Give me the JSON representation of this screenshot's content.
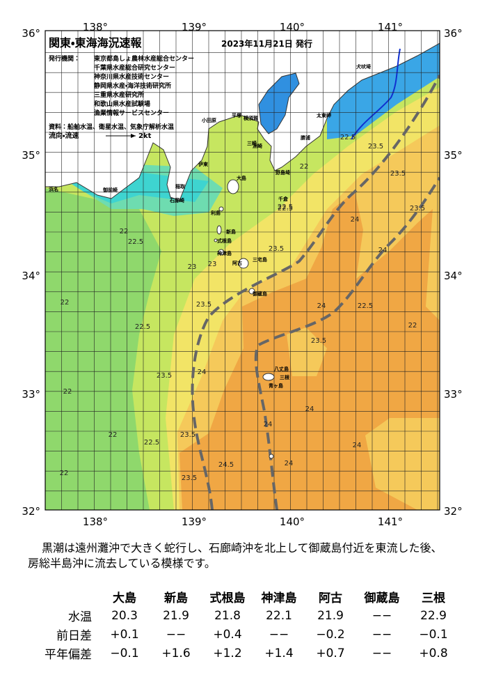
{
  "header": {
    "title": "関東・東海海況速報",
    "date": "2023年11月21日 発行"
  },
  "legend": {
    "issuers_label": "発行機関：",
    "issuers": [
      "東京都島しょ農林水産総合センター",
      "千葉県水産総合研究センター",
      "神奈川県水産技術センター",
      "静岡県水産・海洋技術研究所",
      "三重県水産研究所",
      "和歌山県水産試験場",
      "漁業情報サービスセンター"
    ],
    "data_source": "資料：船舶水温、衛星水温、気象庁解析水温",
    "flow_label": "流向・流速",
    "flow_unit": "2kt"
  },
  "axes": {
    "longitudes": [
      "138°",
      "139°",
      "140°",
      "141°"
    ],
    "latitudes": [
      "36°",
      "35°",
      "34°",
      "33°",
      "32°"
    ]
  },
  "places": [
    "犬吠埼",
    "太東岬",
    "勝浦",
    "千倉",
    "洲崎",
    "野島埼",
    "平塚",
    "横須賀",
    "三崎",
    "小田原",
    "伊東",
    "稲取",
    "石廊崎",
    "御前崎",
    "浜名",
    "大島",
    "利島",
    "新島",
    "式根島",
    "神津島",
    "三宅島",
    "阿古",
    "御蔵島",
    "八丈島",
    "三根",
    "青ヶ島"
  ],
  "contours": [
    "23.5",
    "23.5",
    "23.5",
    "22.5",
    "22",
    "22.5",
    "24",
    "24",
    "22.5",
    "22",
    "24",
    "23.5",
    "23",
    "23",
    "22.5",
    "22",
    "23.5",
    "22.5",
    "22",
    "22",
    "22",
    "22.5",
    "22",
    "23.5",
    "23.5",
    "23.5",
    "24",
    "24",
    "24",
    "24.5",
    "24",
    "24",
    "23.5",
    "22.5"
  ],
  "description": "黒潮は遠州灘沖で大きく蛇行し、石廊崎沖を北上して御蔵島付近を東流した後、房総半島沖に流去している模様です。",
  "table": {
    "columns": [
      "大島",
      "新島",
      "式根島",
      "神津島",
      "阿古",
      "御蔵島",
      "三根"
    ],
    "rows": [
      {
        "label": "水温",
        "cells": [
          "20.3",
          "21.9",
          "21.8",
          "22.1",
          "21.9",
          "−−",
          "22.9"
        ]
      },
      {
        "label": "前日差",
        "cells": [
          "+0.1",
          "−−",
          "+0.4",
          "−−",
          "−0.2",
          "−−",
          "−0.1"
        ]
      },
      {
        "label": "平年偏差",
        "cells": [
          "−0.1",
          "+1.6",
          "+1.2",
          "+1.4",
          "+0.7",
          "−−",
          "+0.8"
        ]
      }
    ]
  }
}
